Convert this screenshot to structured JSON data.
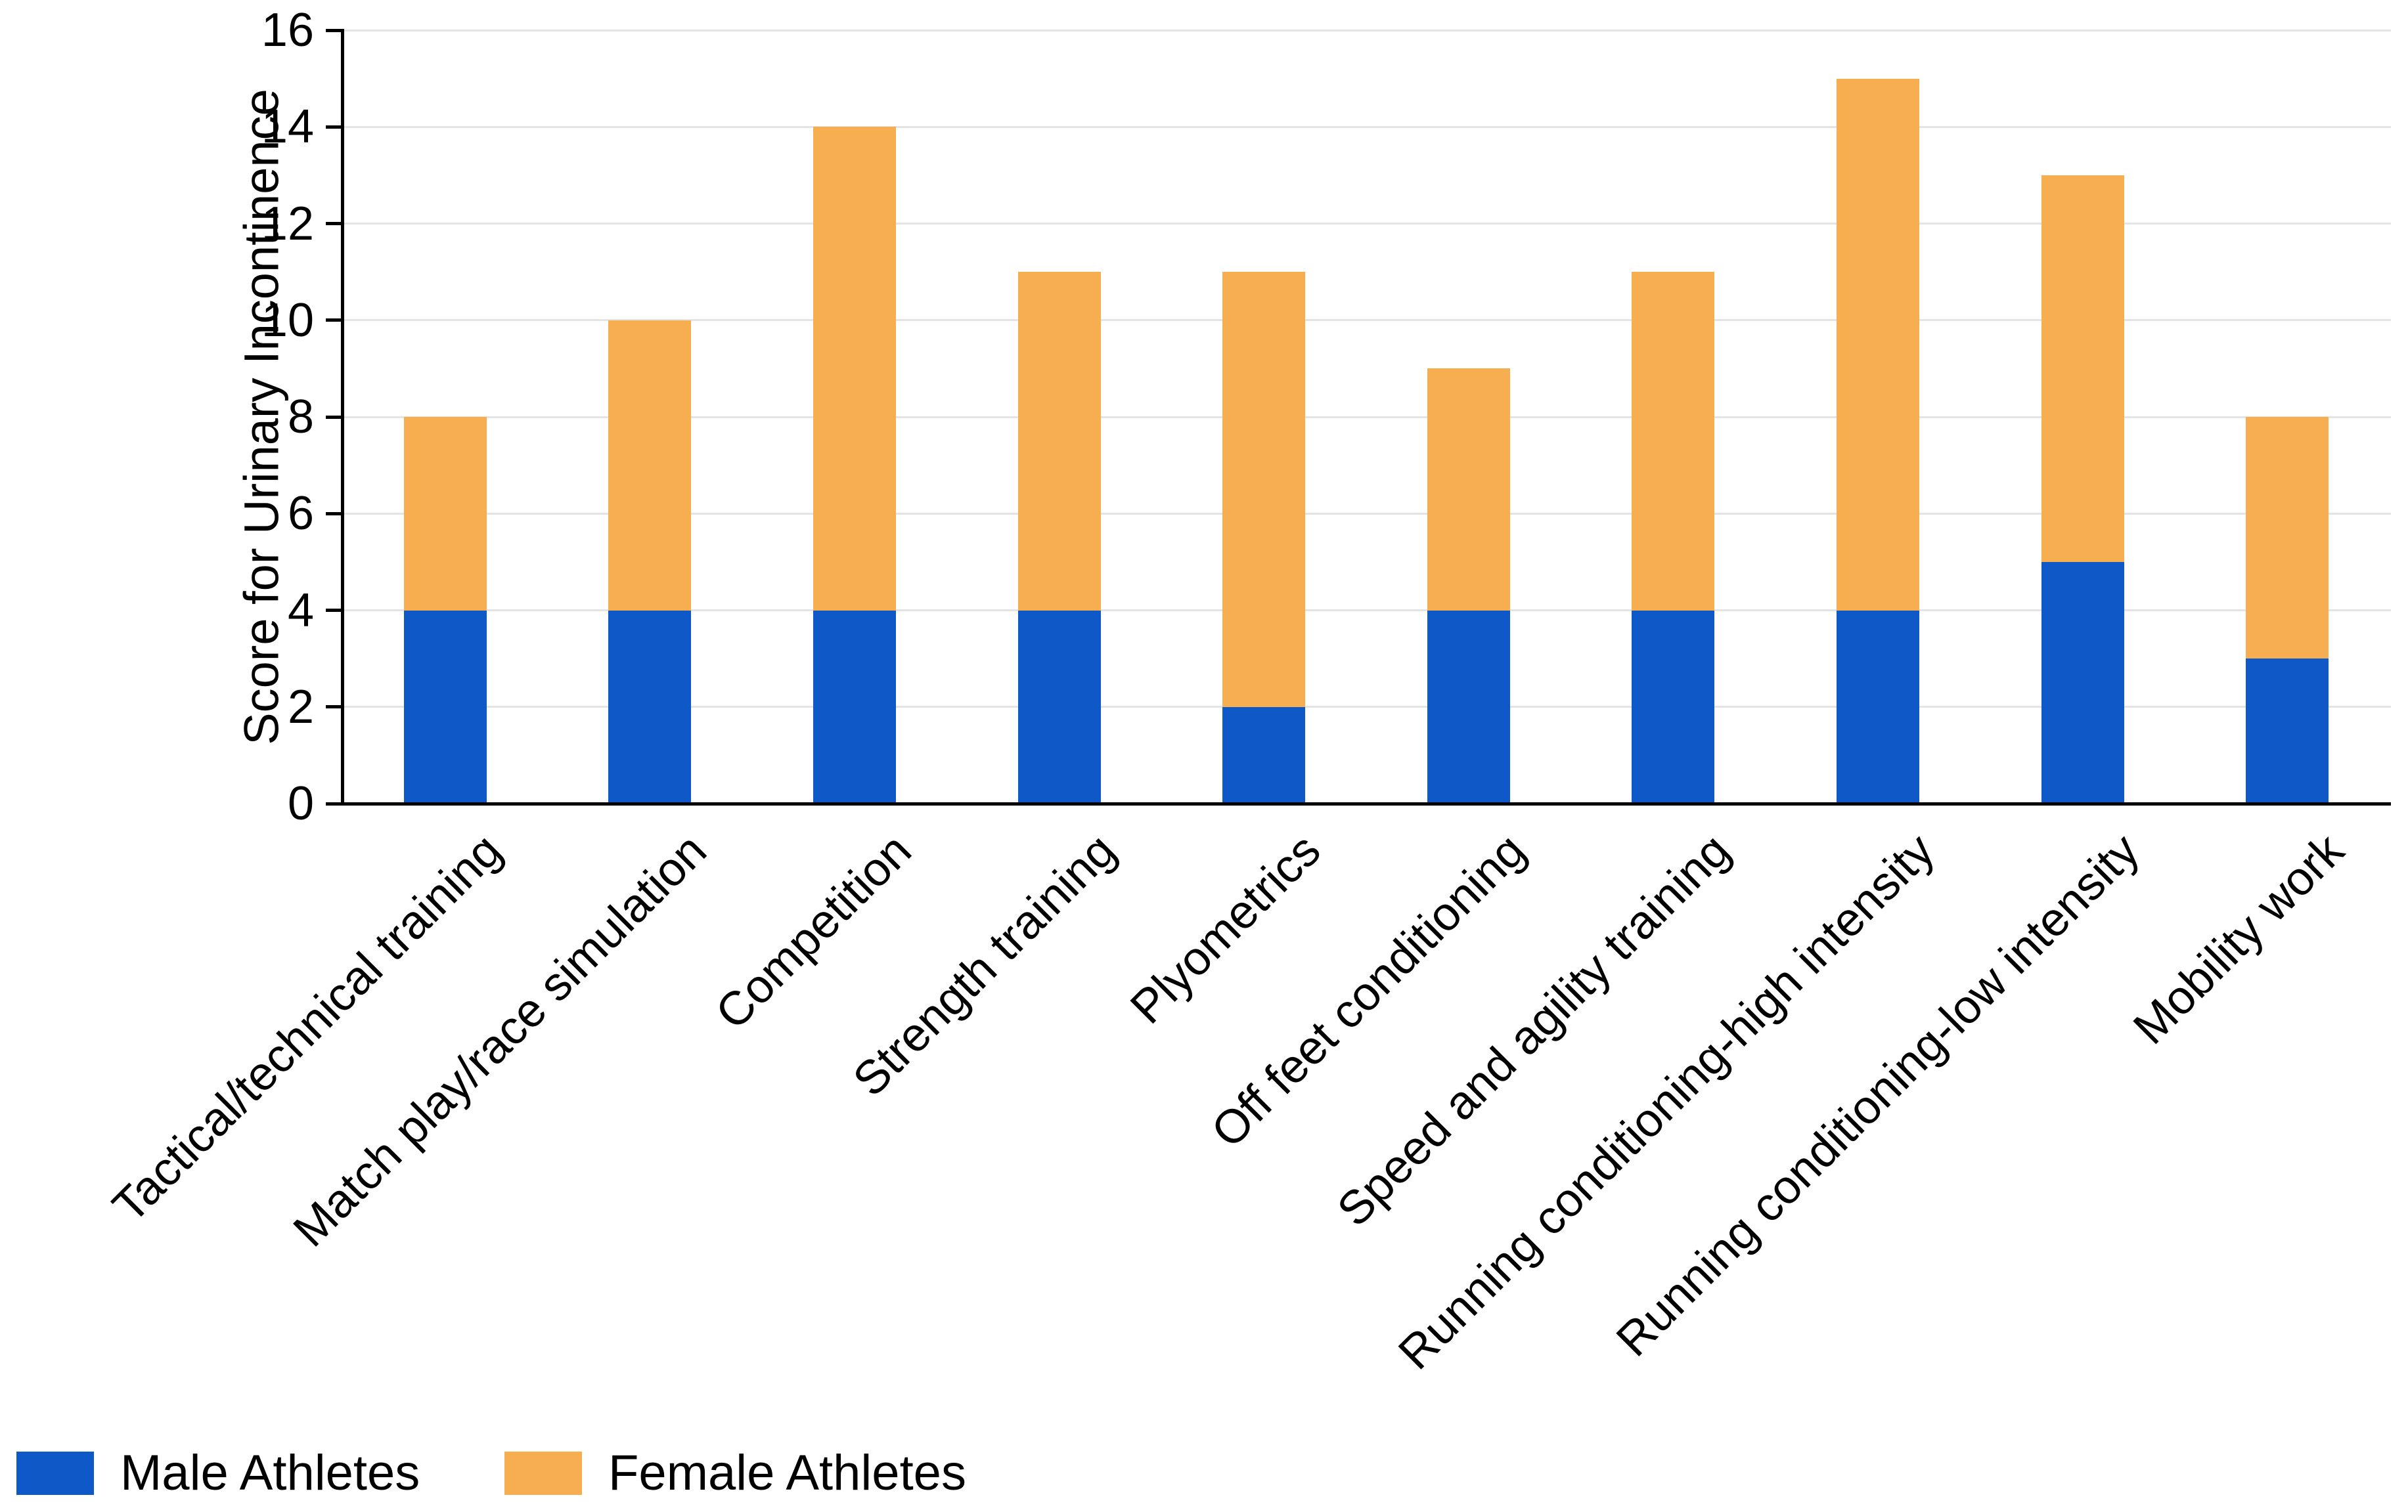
{
  "chart_data": {
    "type": "bar",
    "stacked": true,
    "title": "",
    "xlabel": "",
    "ylabel": "Score for Urinary Incontinence",
    "ylim": [
      0,
      16
    ],
    "yticks": [
      0,
      2,
      4,
      6,
      8,
      10,
      12,
      14,
      16
    ],
    "grid": "horizontal",
    "gridline_color": "#e4e4e4",
    "axis_color": "#000000",
    "legend_position": "bottom-left",
    "x_tick_label_rotation_deg": 45,
    "categories": [
      "Tactical/technical training",
      "Match play/race simulation",
      "Competition",
      "Strength training",
      "Plyometrics",
      "Off feet conditioning",
      "Speed and agility training",
      "Running conditioning-high intensity",
      "Running conditioning-low intensity",
      "Mobility work"
    ],
    "series": [
      {
        "name": "Male Athletes",
        "color": "#0e59c7",
        "values": [
          4,
          4,
          4,
          4,
          2,
          4,
          4,
          4,
          5,
          3
        ]
      },
      {
        "name": "Female Athletes",
        "color": "#f6ae51",
        "values": [
          4,
          6,
          10,
          7,
          9,
          5,
          7,
          11,
          8,
          5
        ]
      }
    ],
    "stack_totals": [
      8,
      10,
      14,
      11,
      11,
      9,
      11,
      15,
      13,
      8
    ]
  },
  "legend": {
    "items": [
      {
        "label": "Male Athletes",
        "swatch_color": "#0e59c7"
      },
      {
        "label": "Female Athletes",
        "swatch_color": "#f6ae51"
      }
    ]
  }
}
